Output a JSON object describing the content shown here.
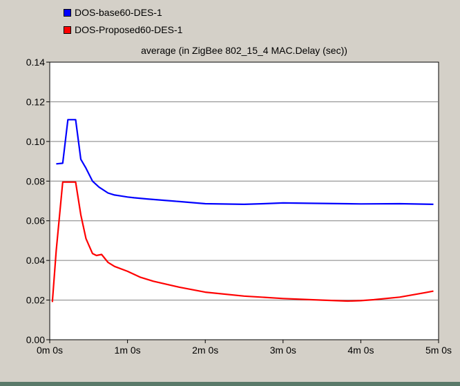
{
  "chart_data": {
    "type": "line",
    "title": "average (in ZigBee 802_15_4 MAC.Delay (sec))",
    "xlabel": "",
    "ylabel": "",
    "xlim": [
      0,
      300
    ],
    "ylim": [
      0,
      0.14
    ],
    "x_tick_values": [
      0,
      60,
      120,
      180,
      240,
      300
    ],
    "x_tick_labels": [
      "0m 0s",
      "1m 0s",
      "2m 0s",
      "3m 0s",
      "4m 0s",
      "5m 0s"
    ],
    "y_tick_values": [
      0,
      0.02,
      0.04,
      0.06,
      0.08,
      0.1,
      0.12,
      0.14
    ],
    "y_tick_labels": [
      "0.00",
      "0.02",
      "0.04",
      "0.06",
      "0.08",
      "0.10",
      "0.12",
      "0.14"
    ],
    "grid": "horizontal",
    "legend_position": "top-left",
    "series": [
      {
        "name": "DOS-base60-DES-1",
        "color": "#0000ff",
        "x": [
          5,
          10,
          14,
          20,
          24,
          28,
          33,
          38,
          45,
          50,
          55,
          60,
          65,
          75,
          90,
          100,
          120,
          150,
          165,
          180,
          200,
          240,
          270,
          296
        ],
        "y": [
          0.0887,
          0.089,
          0.111,
          0.111,
          0.091,
          0.0865,
          0.08,
          0.077,
          0.074,
          0.073,
          0.0725,
          0.072,
          0.0716,
          0.071,
          0.0702,
          0.0697,
          0.0686,
          0.0683,
          0.0686,
          0.069,
          0.0688,
          0.0685,
          0.0686,
          0.0683
        ]
      },
      {
        "name": "DOS-Proposed60-DES-1",
        "color": "#ff0000",
        "x": [
          2,
          5,
          10,
          14,
          20,
          24,
          28,
          33,
          36,
          40,
          45,
          50,
          60,
          70,
          80,
          100,
          120,
          150,
          180,
          210,
          230,
          240,
          250,
          270,
          290,
          296
        ],
        "y": [
          0.019,
          0.045,
          0.0795,
          0.0795,
          0.0795,
          0.063,
          0.051,
          0.0435,
          0.0425,
          0.043,
          0.039,
          0.037,
          0.0345,
          0.0315,
          0.0295,
          0.0265,
          0.024,
          0.022,
          0.0208,
          0.02,
          0.0195,
          0.0197,
          0.0202,
          0.0215,
          0.0238,
          0.0245
        ]
      }
    ]
  }
}
